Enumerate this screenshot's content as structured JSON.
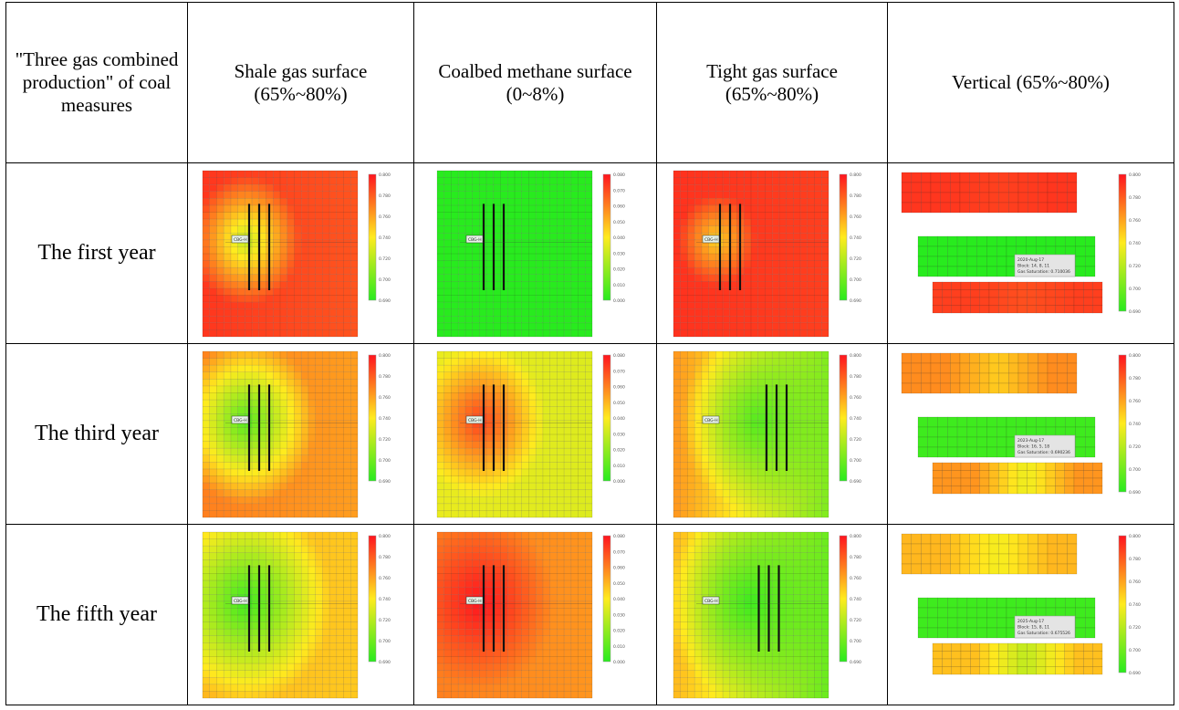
{
  "table": {
    "corner_header": "\"Three gas combined production\" of coal measures",
    "columns": [
      "Shale gas surface (65%~80%)",
      "Coalbed methane surface (0~8%)",
      "Tight gas surface (65%~80%)",
      "Vertical (65%~80%)"
    ],
    "rows": [
      {
        "label": "The first year"
      },
      {
        "label": "The third year"
      },
      {
        "label": "The fifth year"
      }
    ]
  },
  "panels": [
    [
      {
        "kind": "surface",
        "ticks": [
          "0.800",
          "0.780",
          "0.760",
          "0.740",
          "0.720",
          "0.700",
          "0.690"
        ],
        "well_label": "CBG-H",
        "center_level": 0.35,
        "far_level": 0.9,
        "radius": 0.35,
        "bg": [
          0.92,
          0.85
        ]
      },
      {
        "kind": "surface",
        "ticks": [
          "0.080",
          "0.070",
          "0.060",
          "0.050",
          "0.040",
          "0.030",
          "0.020",
          "0.010",
          "0.000"
        ],
        "well_label": "CBG-H",
        "center_level": 0.0,
        "far_level": 0.0,
        "radius": 0.3,
        "bg": [
          0.0,
          0.0
        ]
      },
      {
        "kind": "surface",
        "ticks": [
          "0.800",
          "0.780",
          "0.760",
          "0.740",
          "0.720",
          "0.700",
          "0.690"
        ],
        "well_label": "CBG-H",
        "center_level": 0.55,
        "far_level": 0.93,
        "radius": 0.25,
        "bg": [
          0.93,
          0.9
        ]
      },
      {
        "kind": "vertical",
        "ticks": [
          "0.800",
          "0.780",
          "0.760",
          "0.740",
          "0.720",
          "0.700",
          "0.690"
        ],
        "layers": [
          0.92,
          0.0,
          0.9
        ],
        "tooltip": [
          "2020-Aug-17",
          "Block: 14, 8, 11",
          "Gas Saturation: 0.710036"
        ]
      }
    ],
    [
      {
        "kind": "surface",
        "ticks": [
          "0.800",
          "0.780",
          "0.760",
          "0.740",
          "0.720",
          "0.700",
          "0.690"
        ],
        "well_label": "CBG-H",
        "center_level": 0.1,
        "far_level": 0.72,
        "radius": 0.45,
        "bg": [
          0.75,
          0.68
        ]
      },
      {
        "kind": "surface",
        "ticks": [
          "0.080",
          "0.070",
          "0.060",
          "0.050",
          "0.040",
          "0.030",
          "0.020",
          "0.010",
          "0.000"
        ],
        "well_label": "CBG-H",
        "center_level": 0.9,
        "far_level": 0.45,
        "radius": 0.42,
        "bg": [
          0.45,
          0.42
        ]
      },
      {
        "kind": "surface",
        "ticks": [
          "0.800",
          "0.780",
          "0.760",
          "0.740",
          "0.720",
          "0.700",
          "0.690"
        ],
        "well_label": "CBG-H",
        "center_level": 0.1,
        "far_level": 0.7,
        "radius": 0.5,
        "bg": [
          0.7,
          0.2
        ],
        "shift": 0.55
      },
      {
        "kind": "vertical",
        "ticks": [
          "0.800",
          "0.780",
          "0.760",
          "0.740",
          "0.720",
          "0.700",
          "0.690"
        ],
        "layers": [
          0.72,
          0.05,
          0.7
        ],
        "tooltip": [
          "2023-Aug-17",
          "Block: 16, 5, 18",
          "Gas Saturation: 0.690236"
        ]
      }
    ],
    [
      {
        "kind": "surface",
        "ticks": [
          "0.800",
          "0.780",
          "0.760",
          "0.740",
          "0.720",
          "0.700",
          "0.690"
        ],
        "well_label": "CBG-H",
        "center_level": 0.05,
        "far_level": 0.62,
        "radius": 0.55,
        "bg": [
          0.62,
          0.58
        ]
      },
      {
        "kind": "surface",
        "ticks": [
          "0.080",
          "0.070",
          "0.060",
          "0.050",
          "0.040",
          "0.030",
          "0.020",
          "0.010",
          "0.000"
        ],
        "well_label": "CBG-H",
        "center_level": 1.0,
        "far_level": 0.75,
        "radius": 0.48,
        "bg": [
          0.75,
          0.7
        ]
      },
      {
        "kind": "surface",
        "ticks": [
          "0.800",
          "0.780",
          "0.760",
          "0.740",
          "0.720",
          "0.700",
          "0.690"
        ],
        "well_label": "CBG-H",
        "center_level": 0.05,
        "far_level": 0.62,
        "radius": 0.55,
        "bg": [
          0.62,
          0.15
        ],
        "shift": 0.5
      },
      {
        "kind": "vertical",
        "ticks": [
          "0.800",
          "0.780",
          "0.760",
          "0.740",
          "0.720",
          "0.700",
          "0.690"
        ],
        "layers": [
          0.62,
          0.05,
          0.6
        ],
        "tooltip": [
          "2025-Aug-17",
          "Block: 15, 8, 11",
          "Gas Saturation: 0.675526"
        ]
      }
    ]
  ]
}
